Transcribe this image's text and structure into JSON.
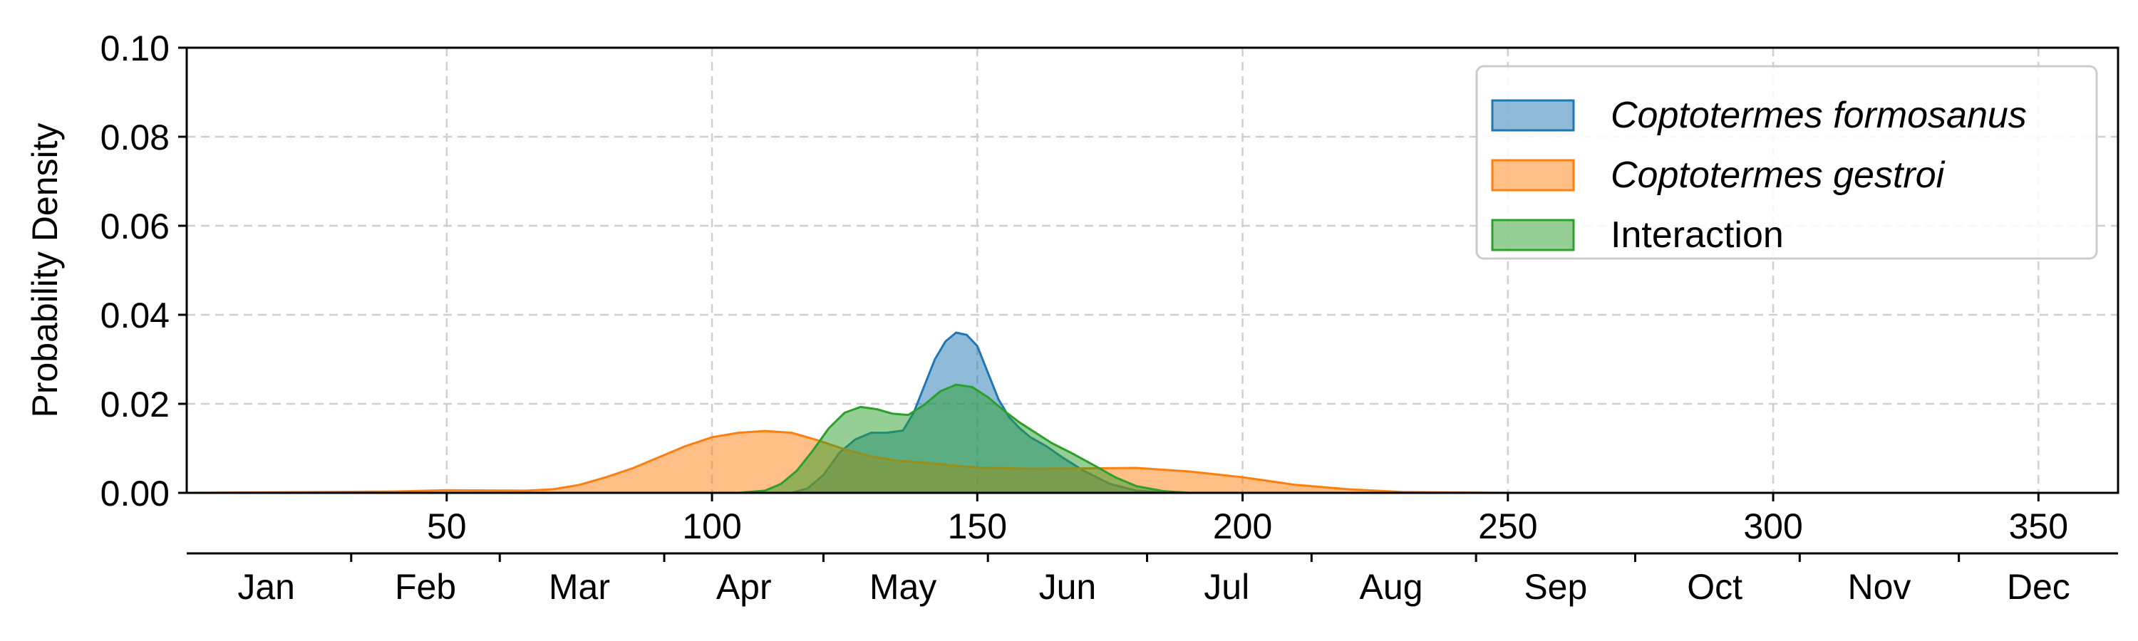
{
  "chart_data": {
    "type": "area",
    "title": "",
    "xlabel": "",
    "ylabel": "Probability Density",
    "xlim": [
      1,
      365
    ],
    "ylim": [
      0,
      0.1
    ],
    "x_ticks": [
      50,
      100,
      150,
      200,
      250,
      300,
      350
    ],
    "y_ticks": [
      0.0,
      0.02,
      0.04,
      0.06,
      0.08,
      0.1
    ],
    "y_tick_labels": [
      "0.00",
      "0.02",
      "0.04",
      "0.06",
      "0.08",
      "0.10"
    ],
    "grid": true,
    "legend_position": "top-right",
    "months": [
      {
        "label": "Jan",
        "day": 16
      },
      {
        "label": "Feb",
        "day": 46
      },
      {
        "label": "Mar",
        "day": 75
      },
      {
        "label": "Apr",
        "day": 106
      },
      {
        "label": "May",
        "day": 136
      },
      {
        "label": "Jun",
        "day": 167
      },
      {
        "label": "Jul",
        "day": 197
      },
      {
        "label": "Aug",
        "day": 228
      },
      {
        "label": "Sep",
        "day": 259
      },
      {
        "label": "Oct",
        "day": 289
      },
      {
        "label": "Nov",
        "day": 320
      },
      {
        "label": "Dec",
        "day": 350
      }
    ],
    "month_boundaries": [
      32,
      60,
      91,
      121,
      152,
      182,
      213,
      244,
      274,
      305,
      335
    ],
    "series": [
      {
        "name": "Coptotermes formosanus",
        "italic": true,
        "fill": "#1f77b4",
        "stroke": "#1f77b4",
        "x": [
          1,
          100,
          115,
          118,
          121,
          124,
          127,
          130,
          133,
          136,
          138,
          140,
          142,
          144,
          146,
          148,
          150,
          152,
          154,
          156,
          158,
          160,
          163,
          166,
          170,
          175,
          180,
          185,
          190,
          365
        ],
        "y": [
          0,
          0,
          0,
          0.001,
          0.004,
          0.009,
          0.012,
          0.0135,
          0.0135,
          0.014,
          0.018,
          0.024,
          0.03,
          0.034,
          0.036,
          0.0355,
          0.033,
          0.027,
          0.021,
          0.017,
          0.0145,
          0.0125,
          0.0105,
          0.008,
          0.005,
          0.002,
          0.0005,
          0.0001,
          0,
          0
        ]
      },
      {
        "name": "Coptotermes gestroi",
        "italic": true,
        "fill": "#ff7f0e",
        "stroke": "#ff7f0e",
        "x": [
          1,
          40,
          50,
          65,
          70,
          75,
          80,
          85,
          90,
          95,
          100,
          105,
          110,
          115,
          120,
          125,
          130,
          135,
          140,
          145,
          150,
          160,
          170,
          180,
          190,
          200,
          210,
          220,
          230,
          250,
          365
        ],
        "y": [
          0,
          0.0003,
          0.0006,
          0.0005,
          0.0008,
          0.0018,
          0.0035,
          0.0055,
          0.008,
          0.0105,
          0.0125,
          0.0135,
          0.0139,
          0.0135,
          0.0118,
          0.0098,
          0.0082,
          0.0072,
          0.0068,
          0.0062,
          0.0057,
          0.0054,
          0.0055,
          0.0056,
          0.0048,
          0.0035,
          0.0018,
          0.0008,
          0.0002,
          0,
          0
        ]
      },
      {
        "name": "Interaction",
        "italic": false,
        "fill": "#2ca02c",
        "stroke": "#2ca02c",
        "x": [
          1,
          105,
          110,
          113,
          116,
          119,
          122,
          125,
          128,
          131,
          134,
          137,
          140,
          143,
          146,
          149,
          152,
          155,
          158,
          161,
          164,
          168,
          172,
          176,
          180,
          185,
          190,
          365
        ],
        "y": [
          0,
          0,
          0.0005,
          0.002,
          0.005,
          0.0095,
          0.0145,
          0.018,
          0.0193,
          0.0188,
          0.0178,
          0.0175,
          0.0198,
          0.0228,
          0.0243,
          0.0238,
          0.0215,
          0.0185,
          0.0158,
          0.0135,
          0.0112,
          0.0088,
          0.0062,
          0.0035,
          0.0015,
          0.0004,
          0,
          0
        ]
      }
    ]
  }
}
